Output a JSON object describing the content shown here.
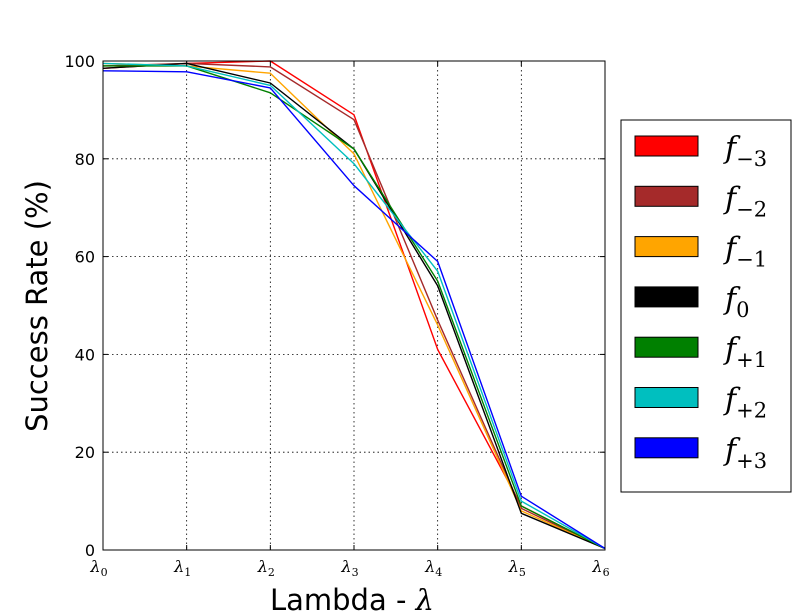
{
  "chart_data": {
    "type": "line",
    "title": "",
    "xlabel": "Lambda - λ",
    "ylabel": "Success Rate (%)",
    "ylim": [
      0,
      100
    ],
    "yticks": [
      "0",
      "20",
      "40",
      "60",
      "80",
      "100"
    ],
    "grid": true,
    "legend_position": "right",
    "categories": [
      {
        "symbol": "λ",
        "sub": "0"
      },
      {
        "symbol": "λ",
        "sub": "1"
      },
      {
        "symbol": "λ",
        "sub": "2"
      },
      {
        "symbol": "λ",
        "sub": "3"
      },
      {
        "symbol": "λ",
        "sub": "4"
      },
      {
        "symbol": "λ",
        "sub": "5"
      },
      {
        "symbol": "λ",
        "sub": "6"
      }
    ],
    "series": [
      {
        "symbol": "f",
        "sub": "−3",
        "color": "#ff0000",
        "values": [
          98.5,
          99.5,
          100,
          89,
          41,
          9,
          0.3
        ]
      },
      {
        "symbol": "f",
        "sub": "−2",
        "color": "#a52a2a",
        "values": [
          99,
          99.5,
          98.8,
          88,
          47,
          8.5,
          0.3
        ]
      },
      {
        "symbol": "f",
        "sub": "−1",
        "color": "#ffa500",
        "values": [
          99.5,
          99,
          97.5,
          81,
          46,
          8,
          0.3
        ]
      },
      {
        "symbol": "f",
        "sub": "0",
        "color": "#000000",
        "values": [
          98.5,
          99.5,
          95.5,
          82,
          54,
          7.5,
          0.3
        ]
      },
      {
        "symbol": "f",
        "sub": "+1",
        "color": "#008000",
        "values": [
          99,
          99,
          93.5,
          82,
          55,
          9,
          0.3
        ]
      },
      {
        "symbol": "f",
        "sub": "+2",
        "color": "#00bfbf",
        "values": [
          99.5,
          99,
          95,
          79,
          57,
          10,
          0.3
        ]
      },
      {
        "symbol": "f",
        "sub": "+3",
        "color": "#0000ff",
        "values": [
          98,
          97.8,
          94.5,
          74.5,
          59,
          11,
          0.3
        ]
      }
    ]
  }
}
